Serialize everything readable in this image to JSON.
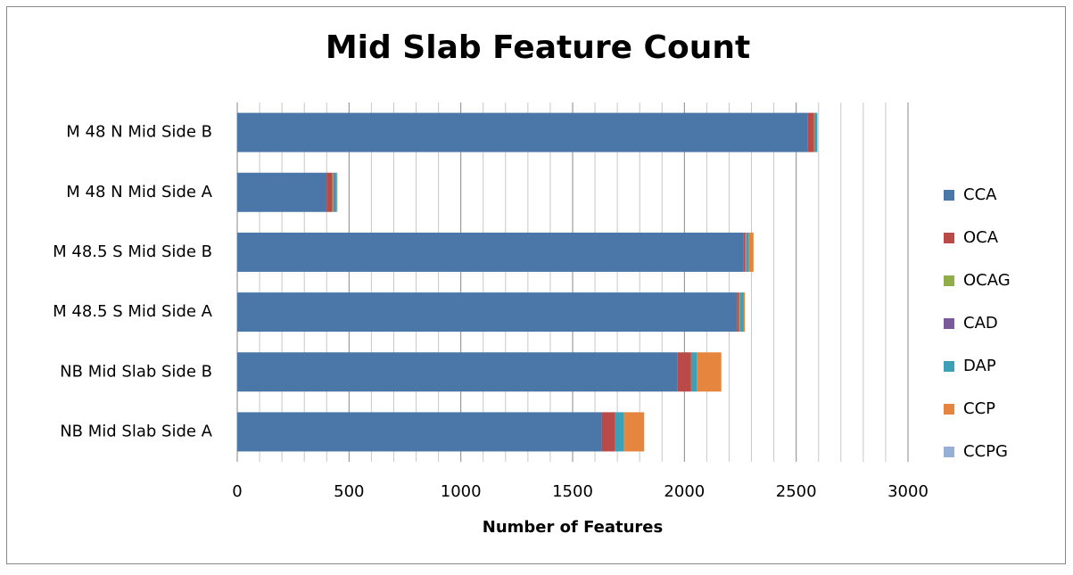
{
  "chart_data": {
    "type": "stacked-barh",
    "title": "Mid Slab Feature Count",
    "x_label": "Number of Features",
    "categories": [
      "M 48 N Mid Side B",
      "M 48 N Mid Side A",
      "M 48.5 S Mid Side B",
      "M 48.5 S Mid Side A",
      "NB Mid Slab Side B",
      "NB Mid Slab Side A"
    ],
    "series": [
      {
        "name": "CCA",
        "color": "#4a76a8",
        "values": [
          2550,
          400,
          2265,
          2235,
          1970,
          1630
        ]
      },
      {
        "name": "OCA",
        "color": "#b94a48",
        "values": [
          30,
          25,
          8,
          10,
          60,
          60
        ]
      },
      {
        "name": "OCAG",
        "color": "#8fae4a",
        "values": [
          3,
          5,
          2,
          2,
          0,
          0
        ]
      },
      {
        "name": "CAD",
        "color": "#7a5a99",
        "values": [
          2,
          3,
          2,
          2,
          0,
          0
        ]
      },
      {
        "name": "DAP",
        "color": "#3ea0b5",
        "values": [
          10,
          10,
          12,
          15,
          25,
          40
        ]
      },
      {
        "name": "CCP",
        "color": "#e6853e",
        "values": [
          0,
          5,
          20,
          6,
          110,
          90
        ]
      },
      {
        "name": "CCPG",
        "color": "#97afd4",
        "values": [
          0,
          0,
          0,
          0,
          0,
          0
        ]
      }
    ],
    "xlim": [
      0,
      3000
    ],
    "xticks": [
      0,
      500,
      1000,
      1500,
      2000,
      2500,
      3000
    ],
    "minor_xticks": [
      100,
      200,
      300,
      400,
      600,
      700,
      800,
      900,
      1100,
      1200,
      1300,
      1400,
      1600,
      1700,
      1800,
      1900,
      2100,
      2200,
      2300,
      2400,
      2600,
      2700,
      2800,
      2900
    ],
    "grid": true,
    "legend": "right"
  }
}
